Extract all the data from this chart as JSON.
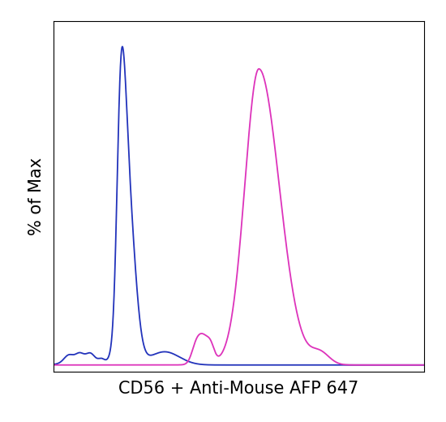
{
  "title": "",
  "xlabel": "CD56 + Anti-Mouse AFP 647",
  "ylabel": "% of Max",
  "background_color": "#ffffff",
  "plot_bg_color": "#ffffff",
  "blue_color": "#2233bb",
  "pink_color": "#dd33bb",
  "xlim": [
    0,
    1
  ],
  "ylim": [
    -0.02,
    1.08
  ],
  "xlabel_fontsize": 15,
  "ylabel_fontsize": 15,
  "linewidth": 1.3
}
